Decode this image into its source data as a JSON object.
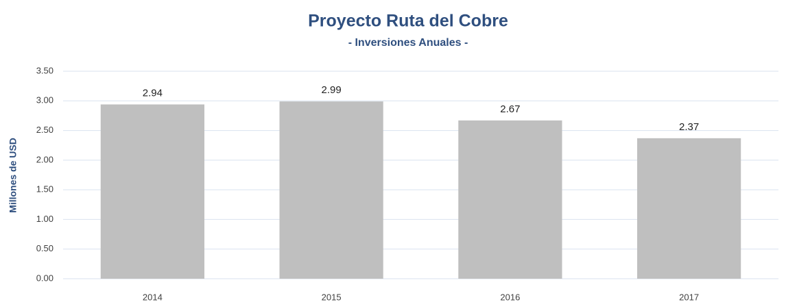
{
  "chart_data": {
    "type": "bar",
    "title": "Proyecto Ruta del Cobre",
    "subtitle": "- Inversiones Anuales -",
    "y_label": "Millones de USD",
    "categories": [
      "2014",
      "2015",
      "2016",
      "2017"
    ],
    "values": [
      2.94,
      2.99,
      2.67,
      2.37
    ],
    "color": "#bfbfbf",
    "ylim": [
      0,
      3.5
    ],
    "yticks": [
      {
        "value": 0,
        "label": "0.00"
      },
      {
        "value": 0.5,
        "label": "0.50"
      },
      {
        "value": 1,
        "label": "1.00"
      },
      {
        "value": 1.5,
        "label": "1.50"
      },
      {
        "value": 2,
        "label": "2.00"
      },
      {
        "value": 2.5,
        "label": "2.50"
      },
      {
        "value": 3,
        "label": "3.00"
      },
      {
        "value": 3.5,
        "label": "3.50"
      }
    ],
    "grid": true
  }
}
